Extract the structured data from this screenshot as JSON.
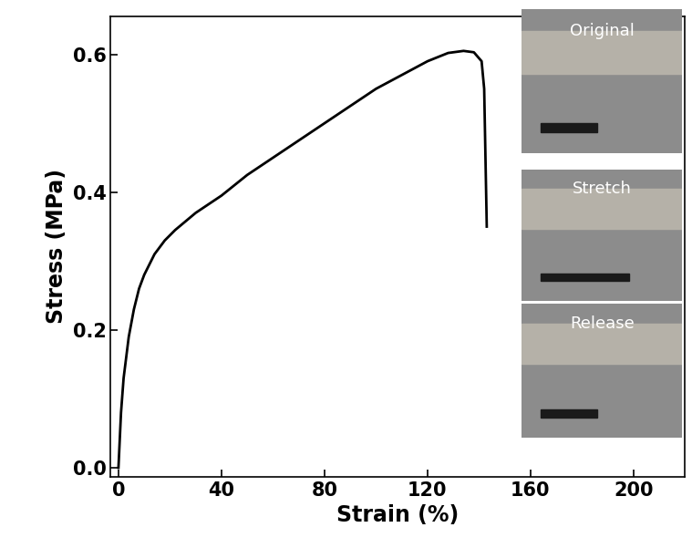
{
  "chart_data": {
    "type": "line",
    "x_label": "Strain (%)",
    "y_label": "Stress (MPa)",
    "x": [
      0,
      1,
      2,
      4,
      6,
      8,
      10,
      14,
      18,
      22,
      30,
      40,
      50,
      60,
      70,
      80,
      90,
      100,
      110,
      120,
      128,
      134,
      138,
      141,
      142,
      142.5,
      143
    ],
    "series": [
      {
        "color": "#000000",
        "values": [
          0,
          0.08,
          0.13,
          0.19,
          0.23,
          0.26,
          0.28,
          0.31,
          0.33,
          0.345,
          0.37,
          0.395,
          0.425,
          0.45,
          0.475,
          0.5,
          0.525,
          0.55,
          0.57,
          0.59,
          0.602,
          0.605,
          0.603,
          0.59,
          0.55,
          0.45,
          0.35
        ]
      }
    ],
    "xlim": [
      -3,
      220
    ],
    "ylim": [
      -0.013,
      0.655
    ],
    "xticks": [
      0,
      40,
      80,
      120,
      160,
      200
    ],
    "yticks": [
      {
        "value": 0.0,
        "label": "0.0"
      },
      0.2,
      0.4,
      0.6
    ],
    "annotations": [
      "Original",
      "Stretch",
      "Release"
    ]
  }
}
